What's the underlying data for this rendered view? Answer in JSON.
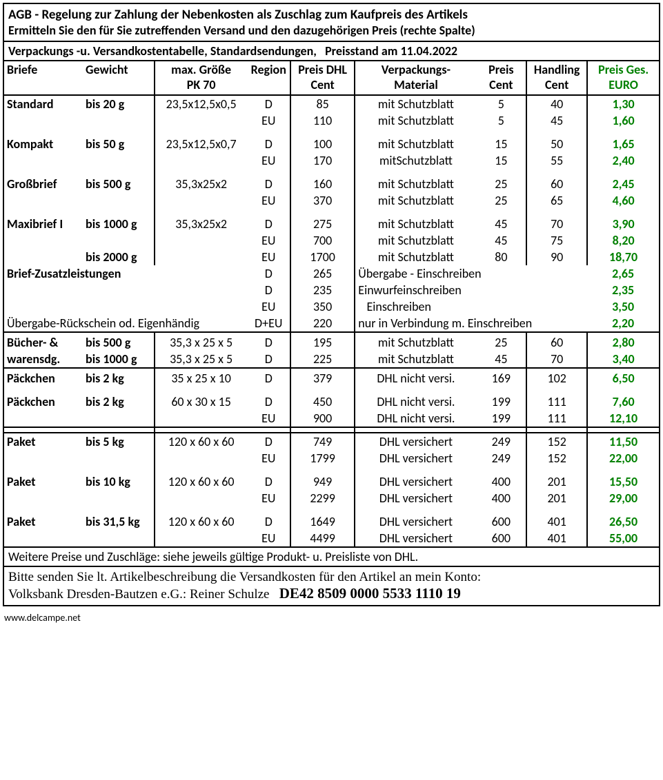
{
  "colors": {
    "text": "#000000",
    "price_total": "#008000",
    "border": "#000000",
    "background": "#ffffff"
  },
  "fonts": {
    "main_family": "Calibri, Arial, sans-serif",
    "bank_family": "Times New Roman, serif",
    "header_size_pt": 14,
    "body_size_pt": 13
  },
  "header": {
    "line1": "AGB - Regelung zur Zahlung der Nebenkosten als Zuschlag zum Kaufpreis des Artikels",
    "line2": "Ermitteln Sie den für Sie zutreffenden Versand und den dazugehörigen Preis (rechte Spalte)"
  },
  "subheader": "Verpackungs -u. Versandkostentabelle, Standardsendungen,   Preisstand am 11.04.2022",
  "columns": {
    "c1a": "Briefe",
    "c1b": "Gewicht",
    "c2a": "max. Größe",
    "c2b": "PK 70",
    "c3": "Region",
    "c4a": "Preis DHL",
    "c4b": "Cent",
    "c5a": "Verpackungs-",
    "c5b": "Material",
    "c6a": "Preis",
    "c6b": "Cent",
    "c7a": "Handling",
    "c7b": "Cent",
    "c8a": "Preis Ges.",
    "c8b": "EURO"
  },
  "rows": [
    {
      "type": "Standard",
      "weight": "bis 20 g",
      "size": "23,5x12,5x0,5",
      "region": "D",
      "dhl": "85",
      "mat": "mit Schutzblatt",
      "matprice": "5",
      "handling": "40",
      "total": "1,30"
    },
    {
      "type": "",
      "weight": "",
      "size": "",
      "region": "EU",
      "dhl": "110",
      "mat": "mit Schutzblatt",
      "matprice": "5",
      "handling": "45",
      "total": "1,60"
    },
    {
      "spacer": true
    },
    {
      "type": "Kompakt",
      "weight": "bis 50 g",
      "size": "23,5x12,5x0,7",
      "region": "D",
      "dhl": "100",
      "mat": "mit Schutzblatt",
      "matprice": "15",
      "handling": "50",
      "total": "1,65"
    },
    {
      "type": "",
      "weight": "",
      "size": "",
      "region": "EU",
      "dhl": "170",
      "mat": "mitSchutzblatt",
      "matprice": "15",
      "handling": "55",
      "total": "2,40"
    },
    {
      "spacer": true
    },
    {
      "type": "Großbrief",
      "weight": "bis 500 g",
      "size": "35,3x25x2",
      "region": "D",
      "dhl": "160",
      "mat": "mit Schutzblatt",
      "matprice": "25",
      "handling": "60",
      "total": "2,45"
    },
    {
      "type": "",
      "weight": "",
      "size": "",
      "region": "EU",
      "dhl": "370",
      "mat": "mit Schutzblatt",
      "matprice": "25",
      "handling": "65",
      "total": "4,60"
    },
    {
      "spacer": true
    },
    {
      "type": "Maxibrief I",
      "weight": "bis 1000 g",
      "size": "35,3x25x2",
      "region": "D",
      "dhl": "275",
      "mat": "mit Schutzblatt",
      "matprice": "45",
      "handling": "70",
      "total": "3,90"
    },
    {
      "type": "",
      "weight": "",
      "size": "",
      "region": "EU",
      "dhl": "700",
      "mat": "mit Schutzblatt",
      "matprice": "45",
      "handling": "75",
      "total": "8,20"
    },
    {
      "type": "",
      "weight": "bis 2000 g",
      "size": "",
      "region": "EU",
      "dhl": "1700",
      "mat": "mit Schutzblatt",
      "matprice": "80",
      "handling": "90",
      "total": "18,70"
    },
    {
      "label": "Brief-Zusatzleistungen",
      "region": "D",
      "dhl": "265",
      "mattext": "Übergabe - Einschreiben",
      "total": "2,65"
    },
    {
      "label": "",
      "region": "D",
      "dhl": "235",
      "mattext": "Einwurfeinschreiben",
      "total": "2,35"
    },
    {
      "label": "",
      "region": "EU",
      "dhl": "350",
      "mattext": "   Einschreiben",
      "total": "3,50"
    },
    {
      "label": "Übergabe-Rückschein od. Eigenhändig",
      "region": "D+EU",
      "dhl": "220",
      "mattext": "nur in Verbindung m. Einschreiben",
      "total": "2,20"
    },
    {
      "sep": true
    },
    {
      "type": "Bücher- &",
      "weight": "bis 500 g",
      "size": "35,3 x 25 x 5",
      "region": "D",
      "dhl": "195",
      "mat": "mit Schutzblatt",
      "matprice": "25",
      "handling": "60",
      "total": "2,80"
    },
    {
      "type": "warensdg.",
      "weight": "bis 1000 g",
      "size": "35,3 x 25 x 5",
      "region": "D",
      "dhl": "225",
      "mat": "mit Schutzblatt",
      "matprice": "45",
      "handling": "70",
      "total": "3,40"
    },
    {
      "sep": true
    },
    {
      "type": "Päckchen",
      "weight": "bis 2 kg",
      "size": "35 x 25 x 10",
      "region": "D",
      "dhl": "379",
      "mat": "DHL nicht versi.",
      "matprice": "169",
      "handling": "102",
      "total": "6,50"
    },
    {
      "spacer": true
    },
    {
      "type": "Päckchen",
      "weight": "bis 2 kg",
      "size": "60 x 30 x 15",
      "region": "D",
      "dhl": "450",
      "mat": "DHL nicht versi.",
      "matprice": "199",
      "handling": "111",
      "total": "7,60"
    },
    {
      "type": "",
      "weight": "",
      "size": "",
      "region": "EU",
      "dhl": "900",
      "mat": "DHL nicht versi.",
      "matprice": "199",
      "handling": "111",
      "total": "12,10"
    },
    {
      "gap": true
    },
    {
      "type": "Paket",
      "weight": "bis 5 kg",
      "size": "120 x 60 x 60",
      "region": "D",
      "dhl": "749",
      "mat": "DHL versichert",
      "matprice": "249",
      "handling": "152",
      "total": "11,50"
    },
    {
      "type": "",
      "weight": "",
      "size": "",
      "region": "EU",
      "dhl": "1799",
      "mat": "DHL versichert",
      "matprice": "249",
      "handling": "152",
      "total": "22,00"
    },
    {
      "spacer": true
    },
    {
      "type": "Paket",
      "weight": "bis 10 kg",
      "size": "120 x 60 x 60",
      "region": "D",
      "dhl": "949",
      "mat": "DHL versichert",
      "matprice": "400",
      "handling": "201",
      "total": "15,50"
    },
    {
      "type": "",
      "weight": "",
      "size": "",
      "region": "EU",
      "dhl": "2299",
      "mat": "DHL versichert",
      "matprice": "400",
      "handling": "201",
      "total": "29,00"
    },
    {
      "spacer": true
    },
    {
      "type": "Paket",
      "weight": "bis 31,5 kg",
      "size": "120 x 60 x 60",
      "region": "D",
      "dhl": "1649",
      "mat": "DHL versichert",
      "matprice": "600",
      "handling": "401",
      "total": "26,50"
    },
    {
      "type": "",
      "weight": "",
      "size": "",
      "region": "EU",
      "dhl": "4499",
      "mat": "DHL versichert",
      "matprice": "600",
      "handling": "401",
      "total": "55,00"
    }
  ],
  "footnote": "Weitere Preise und Zuschläge: siehe jeweils gültige Produkt- u. Preisliste von DHL.",
  "bank": {
    "line1": "Bitte senden Sie lt. Artikelbeschreibung die Versandkosten für den Artikel an mein Konto:",
    "line2_prefix": "Volksbank Dresden-Bautzen e.G.: Reiner Schulze   ",
    "iban": "DE42 8509 0000 5533 1110 19"
  },
  "watermark": "www.delcampe.net"
}
